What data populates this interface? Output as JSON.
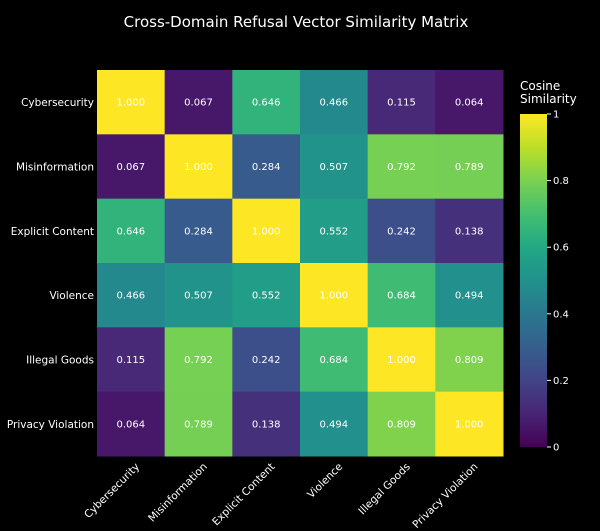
{
  "chart_data": {
    "type": "heatmap",
    "title": "Cross-Domain Refusal Vector Similarity Matrix",
    "x_categories": [
      "Cybersecurity",
      "Misinformation",
      "Explicit Content",
      "Violence",
      "Illegal Goods",
      "Privacy Violation"
    ],
    "y_categories": [
      "Cybersecurity",
      "Misinformation",
      "Explicit Content",
      "Violence",
      "Illegal Goods",
      "Privacy Violation"
    ],
    "values": [
      [
        1.0,
        0.067,
        0.646,
        0.466,
        0.115,
        0.064
      ],
      [
        0.067,
        1.0,
        0.284,
        0.507,
        0.792,
        0.789
      ],
      [
        0.646,
        0.284,
        1.0,
        0.552,
        0.242,
        0.138
      ],
      [
        0.466,
        0.507,
        0.552,
        1.0,
        0.684,
        0.494
      ],
      [
        0.115,
        0.792,
        0.242,
        0.684,
        1.0,
        0.809
      ],
      [
        0.064,
        0.789,
        0.138,
        0.494,
        0.809,
        1.0
      ]
    ],
    "value_format": "0.000",
    "colorscale": "Viridis",
    "zlim": [
      0,
      1
    ],
    "colorbar": {
      "title_lines": [
        "Cosine",
        "Similarity"
      ],
      "ticks": [
        0,
        0.2,
        0.4,
        0.6,
        0.8,
        1
      ],
      "tick_labels": [
        "0",
        "0.2",
        "0.4",
        "0.6",
        "0.8",
        "1"
      ]
    },
    "x_tick_angle": -45,
    "background": "#000000"
  }
}
